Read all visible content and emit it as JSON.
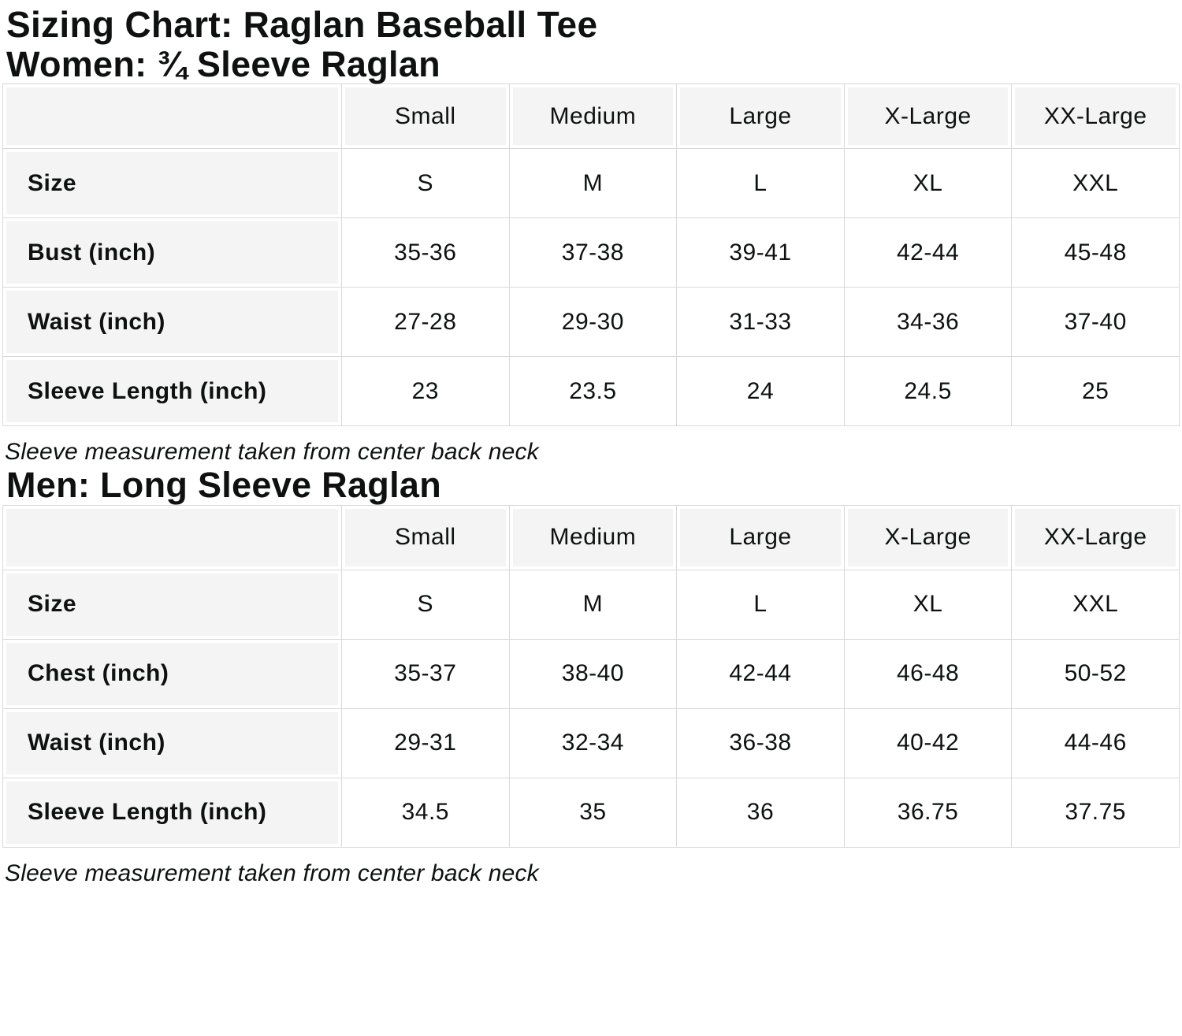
{
  "page": {
    "title": "Sizing Chart: Raglan Baseball Tee"
  },
  "colors": {
    "text": "#0f1111",
    "grid_line": "#d9d9d9",
    "shaded_cell": "#f4f4f4",
    "background": "#ffffff"
  },
  "tables": [
    {
      "heading": "Women: ¾ Sleeve Raglan",
      "columns": [
        "Small",
        "Medium",
        "Large",
        "X-Large",
        "XX-Large"
      ],
      "rows": [
        {
          "label": "Size",
          "values": [
            "S",
            "M",
            "L",
            "XL",
            "XXL"
          ]
        },
        {
          "label": "Bust (inch)",
          "values": [
            "35-36",
            "37-38",
            "39-41",
            "42-44",
            "45-48"
          ]
        },
        {
          "label": "Waist (inch)",
          "values": [
            "27-28",
            "29-30",
            "31-33",
            "34-36",
            "37-40"
          ]
        },
        {
          "label": "Sleeve Length (inch)",
          "values": [
            "23",
            "23.5",
            "24",
            "24.5",
            "25"
          ]
        }
      ],
      "note": "Sleeve measurement taken from center back neck"
    },
    {
      "heading": "Men: Long Sleeve Raglan",
      "columns": [
        "Small",
        "Medium",
        "Large",
        "X-Large",
        "XX-Large"
      ],
      "rows": [
        {
          "label": "Size",
          "values": [
            "S",
            "M",
            "L",
            "XL",
            "XXL"
          ]
        },
        {
          "label": "Chest (inch)",
          "values": [
            "35-37",
            "38-40",
            "42-44",
            "46-48",
            "50-52"
          ]
        },
        {
          "label": "Waist (inch)",
          "values": [
            "29-31",
            "32-34",
            "36-38",
            "40-42",
            "44-46"
          ]
        },
        {
          "label": "Sleeve Length (inch)",
          "values": [
            "34.5",
            "35",
            "36",
            "36.75",
            "37.75"
          ]
        }
      ],
      "note": "Sleeve measurement taken from center back neck"
    }
  ]
}
